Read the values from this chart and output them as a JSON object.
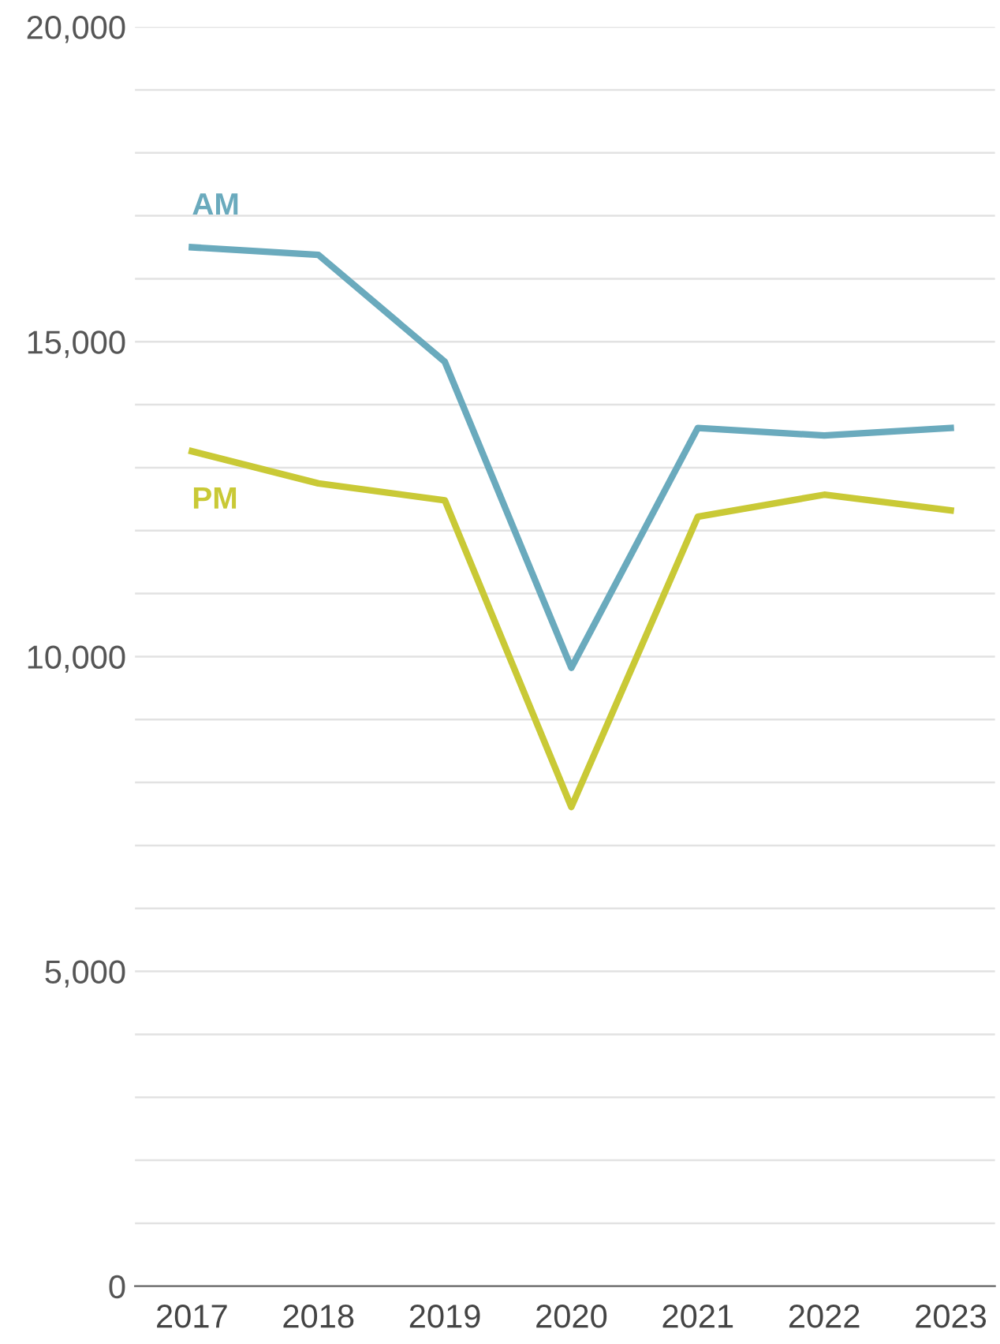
{
  "chart_data": {
    "type": "line",
    "categories": [
      "2017",
      "2018",
      "2019",
      "2020",
      "2021",
      "2022",
      "2023"
    ],
    "series": [
      {
        "name": "AM",
        "color": "#6aaabd",
        "values": [
          16500,
          16380,
          14680,
          9820,
          13630,
          13510,
          13630
        ]
      },
      {
        "name": "PM",
        "color": "#c9c936",
        "values": [
          13260,
          12750,
          12480,
          7610,
          12220,
          12570,
          12320
        ]
      }
    ],
    "ylim": [
      0,
      20000
    ],
    "yticks": [
      {
        "value": 0,
        "label": "0"
      },
      {
        "value": 1000,
        "label": null
      },
      {
        "value": 2000,
        "label": null
      },
      {
        "value": 3000,
        "label": null
      },
      {
        "value": 4000,
        "label": null
      },
      {
        "value": 5000,
        "label": "5,000"
      },
      {
        "value": 6000,
        "label": null
      },
      {
        "value": 7000,
        "label": null
      },
      {
        "value": 8000,
        "label": null
      },
      {
        "value": 9000,
        "label": null
      },
      {
        "value": 10000,
        "label": "10,000"
      },
      {
        "value": 11000,
        "label": null
      },
      {
        "value": 12000,
        "label": null
      },
      {
        "value": 13000,
        "label": null
      },
      {
        "value": 14000,
        "label": null
      },
      {
        "value": 15000,
        "label": "15,000"
      },
      {
        "value": 16000,
        "label": null
      },
      {
        "value": 17000,
        "label": null
      },
      {
        "value": 18000,
        "label": null
      },
      {
        "value": 19000,
        "label": null
      },
      {
        "value": 20000,
        "label": "20,000"
      }
    ],
    "grid": "y",
    "legend": false,
    "marker": "none",
    "line_style": "solid"
  }
}
